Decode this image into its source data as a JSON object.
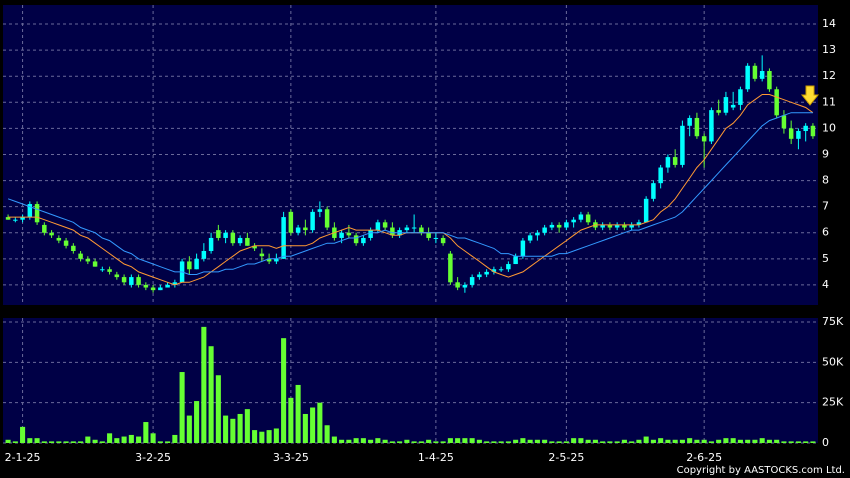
{
  "chart_data": [
    {
      "type": "candlestick",
      "up_color": "#00ffff",
      "down_color": "#66ff33",
      "xlim": [
        -0.7,
        111.7
      ],
      "ylim": [
        3.23,
        14.73
      ],
      "yticks": [
        4,
        5,
        6,
        7,
        8,
        9,
        10,
        11,
        12,
        13,
        14
      ],
      "grid": true,
      "open": [
        6.6,
        6.5,
        6.5,
        6.6,
        7.1,
        6.3,
        6.0,
        5.8,
        5.7,
        5.5,
        5.2,
        5.0,
        4.9,
        4.6,
        4.6,
        4.4,
        4.3,
        4.0,
        4.3,
        4.0,
        3.9,
        3.8,
        3.9,
        4.0,
        4.1,
        4.9,
        4.6,
        5.0,
        5.3,
        6.1,
        5.8,
        6.0,
        5.6,
        5.8,
        5.5,
        5.2,
        5.0,
        4.9,
        5.0,
        6.8,
        6.0,
        6.2,
        6.1,
        6.8,
        6.9,
        6.2,
        5.8,
        6.0,
        5.9,
        5.6,
        5.8,
        6.1,
        6.4,
        6.2,
        5.9,
        6.1,
        6.2,
        6.2,
        6.0,
        5.8,
        5.8,
        5.2,
        4.1,
        3.9,
        4.0,
        4.3,
        4.4,
        4.5,
        4.6,
        4.6,
        4.8,
        5.1,
        5.7,
        5.9,
        6.0,
        6.2,
        6.3,
        6.2,
        6.4,
        6.5,
        6.7,
        6.4,
        6.2,
        6.3,
        6.2,
        6.3,
        6.2,
        6.3,
        6.4,
        7.3,
        7.9,
        8.5,
        8.9,
        8.6,
        10.1,
        10.4,
        9.7,
        9.5,
        10.7,
        10.6,
        10.8,
        10.9,
        11.5,
        12.4,
        11.9,
        12.2,
        11.5,
        10.5,
        10.0,
        9.6,
        9.9,
        10.1
      ],
      "high": [
        6.7,
        6.6,
        6.7,
        7.2,
        7.2,
        6.4,
        6.1,
        5.9,
        5.8,
        5.6,
        5.3,
        5.1,
        5.0,
        4.7,
        4.7,
        4.5,
        4.4,
        4.4,
        4.4,
        4.1,
        4.0,
        4.0,
        4.1,
        4.2,
        5.0,
        5.1,
        5.2,
        5.6,
        6.0,
        6.3,
        6.1,
        6.1,
        5.9,
        6.0,
        5.6,
        5.4,
        5.2,
        5.2,
        6.8,
        6.9,
        6.3,
        6.5,
        6.9,
        7.2,
        7.0,
        6.4,
        6.1,
        6.3,
        6.0,
        5.9,
        6.2,
        6.5,
        6.5,
        6.4,
        6.2,
        6.3,
        6.7,
        6.3,
        6.2,
        6.0,
        5.9,
        5.3,
        4.3,
        4.1,
        4.4,
        4.5,
        4.6,
        4.7,
        4.7,
        4.9,
        5.2,
        5.8,
        6.0,
        6.1,
        6.3,
        6.4,
        6.4,
        6.5,
        6.6,
        6.8,
        6.8,
        6.5,
        6.4,
        6.4,
        6.4,
        6.4,
        6.4,
        6.5,
        7.4,
        8.0,
        8.6,
        9.0,
        9.2,
        10.3,
        10.5,
        10.6,
        9.8,
        10.8,
        11.1,
        11.4,
        11.4,
        11.6,
        12.5,
        12.5,
        12.8,
        12.3,
        11.6,
        10.7,
        10.3,
        10.0,
        10.2,
        10.2
      ],
      "low": [
        6.5,
        6.4,
        6.4,
        6.5,
        6.3,
        5.9,
        5.8,
        5.6,
        5.4,
        5.2,
        4.9,
        4.8,
        4.7,
        4.5,
        4.4,
        4.2,
        4.0,
        3.9,
        3.9,
        3.8,
        3.7,
        3.8,
        3.9,
        3.9,
        4.1,
        4.4,
        4.6,
        4.9,
        5.2,
        5.7,
        5.6,
        5.5,
        5.5,
        5.5,
        5.3,
        4.9,
        4.8,
        4.8,
        5.0,
        5.9,
        5.9,
        5.9,
        6.0,
        6.6,
        6.1,
        5.7,
        5.6,
        5.8,
        5.5,
        5.5,
        5.7,
        6.0,
        6.1,
        5.8,
        5.8,
        6.0,
        6.0,
        5.9,
        5.7,
        5.6,
        5.5,
        4.0,
        3.8,
        3.7,
        3.9,
        4.2,
        4.3,
        4.4,
        4.5,
        4.5,
        4.8,
        5.0,
        5.6,
        5.7,
        5.9,
        6.1,
        6.0,
        6.1,
        6.2,
        6.4,
        6.3,
        6.1,
        6.1,
        6.1,
        6.1,
        6.1,
        6.1,
        6.2,
        6.4,
        7.2,
        7.7,
        8.3,
        8.5,
        8.5,
        9.7,
        9.6,
        8.5,
        9.4,
        10.5,
        10.5,
        10.7,
        10.7,
        11.4,
        11.8,
        11.8,
        11.4,
        10.4,
        9.8,
        9.4,
        9.2,
        9.5,
        9.6
      ],
      "close": [
        6.5,
        6.5,
        6.6,
        7.1,
        6.4,
        6.0,
        5.9,
        5.7,
        5.5,
        5.3,
        5.0,
        4.9,
        4.7,
        4.6,
        4.5,
        4.3,
        4.1,
        4.3,
        4.0,
        3.9,
        3.8,
        3.9,
        4.0,
        4.1,
        4.9,
        4.6,
        5.0,
        5.3,
        5.8,
        5.8,
        6.0,
        5.6,
        5.8,
        5.5,
        5.4,
        5.1,
        4.9,
        5.0,
        6.6,
        6.0,
        6.2,
        6.1,
        6.8,
        6.9,
        6.2,
        5.8,
        6.0,
        5.9,
        5.6,
        5.8,
        6.1,
        6.4,
        6.2,
        5.9,
        6.1,
        6.2,
        6.2,
        6.0,
        5.8,
        5.8,
        5.6,
        4.1,
        3.9,
        4.0,
        4.3,
        4.4,
        4.5,
        4.6,
        4.6,
        4.8,
        5.1,
        5.7,
        5.9,
        6.0,
        6.2,
        6.3,
        6.2,
        6.4,
        6.5,
        6.7,
        6.4,
        6.2,
        6.3,
        6.2,
        6.3,
        6.2,
        6.3,
        6.4,
        7.3,
        7.9,
        8.5,
        8.9,
        8.6,
        10.1,
        10.4,
        9.7,
        9.5,
        10.7,
        10.6,
        11.2,
        10.9,
        11.5,
        12.4,
        11.9,
        12.2,
        11.5,
        10.5,
        10.0,
        9.6,
        9.9,
        10.1,
        9.7
      ],
      "series": [
        {
          "color": "#ff9933",
          "values": [
            6.6,
            6.6,
            6.6,
            6.6,
            6.6,
            6.5,
            6.4,
            6.3,
            6.2,
            6.1,
            5.9,
            5.8,
            5.6,
            5.4,
            5.2,
            5.0,
            4.8,
            4.7,
            4.5,
            4.4,
            4.3,
            4.2,
            4.1,
            4.0,
            4.1,
            4.1,
            4.2,
            4.3,
            4.5,
            4.7,
            4.9,
            5.1,
            5.3,
            5.4,
            5.5,
            5.5,
            5.5,
            5.4,
            5.5,
            5.5,
            5.5,
            5.5,
            5.6,
            5.8,
            5.9,
            6.0,
            6.1,
            6.2,
            6.1,
            6.1,
            6.1,
            6.1,
            6.0,
            5.9,
            5.9,
            6.0,
            6.0,
            6.0,
            6.0,
            6.0,
            6.0,
            5.8,
            5.5,
            5.3,
            5.1,
            4.9,
            4.7,
            4.5,
            4.4,
            4.3,
            4.4,
            4.5,
            4.7,
            4.9,
            5.1,
            5.3,
            5.5,
            5.7,
            5.9,
            6.1,
            6.2,
            6.3,
            6.3,
            6.3,
            6.3,
            6.3,
            6.3,
            6.3,
            6.4,
            6.5,
            6.8,
            7.0,
            7.3,
            7.7,
            8.1,
            8.5,
            8.8,
            9.2,
            9.6,
            10.0,
            10.2,
            10.5,
            10.9,
            11.1,
            11.3,
            11.3,
            11.2,
            11.1,
            11.0,
            10.9,
            10.8,
            10.6
          ]
        },
        {
          "color": "#3399ff",
          "values": [
            7.3,
            7.2,
            7.1,
            7.0,
            6.9,
            6.8,
            6.7,
            6.6,
            6.5,
            6.4,
            6.2,
            6.1,
            6.0,
            5.8,
            5.7,
            5.5,
            5.3,
            5.2,
            5.0,
            4.9,
            4.8,
            4.7,
            4.6,
            4.5,
            4.5,
            4.4,
            4.4,
            4.5,
            4.5,
            4.5,
            4.6,
            4.6,
            4.7,
            4.8,
            4.8,
            4.9,
            5.0,
            5.0,
            5.1,
            5.1,
            5.2,
            5.3,
            5.4,
            5.5,
            5.6,
            5.6,
            5.7,
            5.8,
            5.8,
            5.9,
            6.0,
            6.0,
            6.1,
            6.0,
            6.0,
            6.0,
            6.0,
            6.0,
            6.0,
            6.0,
            6.0,
            5.9,
            5.8,
            5.8,
            5.7,
            5.6,
            5.5,
            5.4,
            5.2,
            5.2,
            5.1,
            5.1,
            5.1,
            5.1,
            5.1,
            5.1,
            5.2,
            5.2,
            5.3,
            5.4,
            5.5,
            5.6,
            5.7,
            5.8,
            5.9,
            6.0,
            6.1,
            6.1,
            6.2,
            6.3,
            6.4,
            6.5,
            6.6,
            6.8,
            7.1,
            7.4,
            7.7,
            8.0,
            8.3,
            8.6,
            8.9,
            9.2,
            9.5,
            9.8,
            10.1,
            10.3,
            10.4,
            10.5,
            10.6,
            10.6,
            10.6,
            10.6
          ]
        }
      ]
    },
    {
      "type": "bar",
      "color": "#66ff33",
      "xlim": [
        -0.7,
        111.7
      ],
      "ylim": [
        0,
        77.5
      ],
      "yticks": [
        0,
        {
          "value": 25,
          "label": "25K"
        },
        {
          "value": 50,
          "label": "50K"
        },
        {
          "value": 75,
          "label": "75K"
        }
      ],
      "xticks": [
        {
          "value": 2,
          "label": "2-1-25"
        },
        {
          "value": 20,
          "label": "3-2-25"
        },
        {
          "value": 39,
          "label": "3-3-25"
        },
        {
          "value": 59,
          "label": "1-4-25"
        },
        {
          "value": 77,
          "label": "2-5-25"
        },
        {
          "value": 96,
          "label": "2-6-25"
        }
      ],
      "grid": true,
      "values": [
        2,
        1,
        10,
        3,
        3,
        1,
        1,
        1,
        1,
        1,
        1,
        4,
        2,
        1,
        6,
        3,
        4,
        5,
        4,
        13,
        6,
        1,
        1,
        5,
        44,
        17,
        26,
        72,
        60,
        42,
        17,
        15,
        18,
        21,
        8,
        7,
        8,
        9,
        65,
        28,
        36,
        18,
        22,
        25,
        11,
        4,
        2,
        2,
        3,
        3,
        2,
        3,
        2,
        1,
        1,
        2,
        1,
        1,
        2,
        1,
        1,
        3,
        3,
        3,
        3,
        2,
        1,
        1,
        1,
        1,
        2,
        3,
        2,
        2,
        2,
        1,
        1,
        1,
        3,
        3,
        2,
        2,
        1,
        1,
        1,
        2,
        1,
        2,
        4,
        2,
        3,
        2,
        2,
        2,
        3,
        2,
        2,
        1,
        2,
        3,
        3,
        2,
        2,
        2,
        3,
        2,
        2,
        1,
        1,
        1,
        1,
        1
      ]
    }
  ],
  "footer": "Copyright by AASTOCKS.com Ltd."
}
